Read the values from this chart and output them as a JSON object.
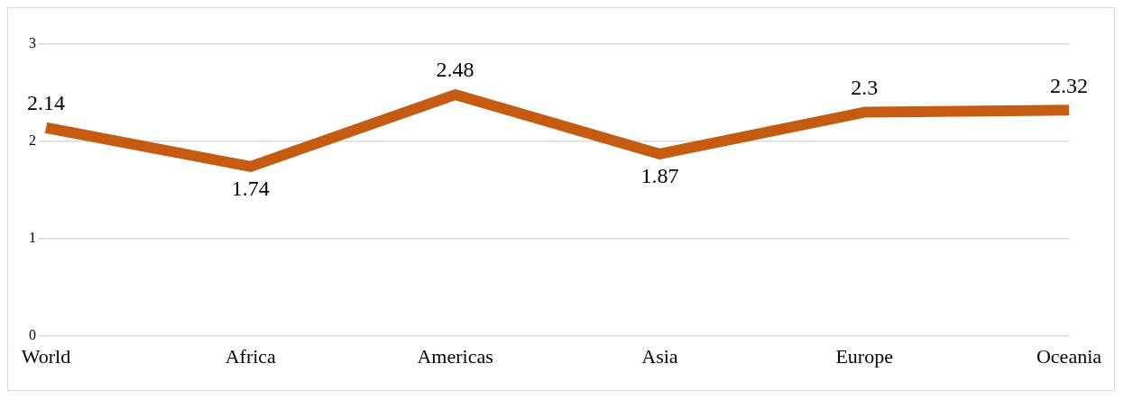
{
  "chart_data": {
    "type": "line",
    "categories": [
      "World",
      "Africa",
      "Americas",
      "Asia",
      "Europe",
      "Oceania"
    ],
    "values": [
      2.14,
      1.74,
      2.48,
      1.87,
      2.3,
      2.32
    ],
    "color": "#c55a11",
    "ylim": [
      0,
      3
    ],
    "yticks": [
      0,
      1,
      2,
      3
    ],
    "grid": "y",
    "data_labels": true
  }
}
